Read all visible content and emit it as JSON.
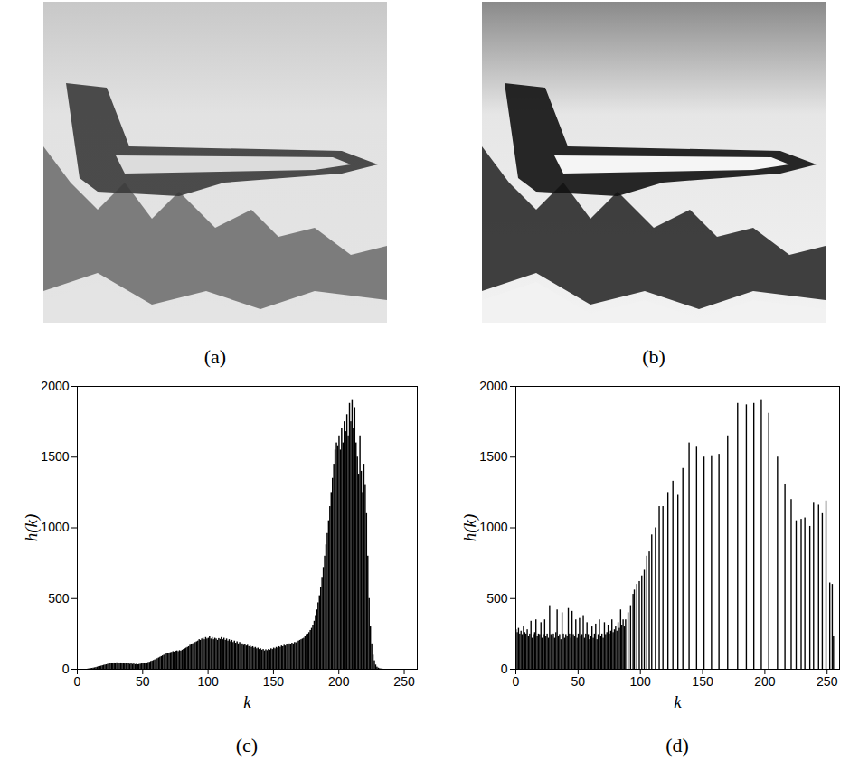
{
  "chart_data": [
    {
      "type": "image",
      "title": "(a)"
    },
    {
      "type": "image",
      "title": "(b)"
    },
    {
      "type": "histogram",
      "title": "(c)",
      "xlabel": "k",
      "ylabel": "h(k)",
      "color": "#000000",
      "xlim": [
        0,
        260
      ],
      "xticks": [
        0,
        50,
        100,
        150,
        200,
        250
      ],
      "ylim": [
        0,
        2000
      ],
      "yticks": [
        0,
        500,
        1000,
        1500,
        2000
      ],
      "bins": [
        0,
        1,
        2,
        3,
        4,
        5,
        6,
        7,
        8,
        9,
        10,
        11,
        12,
        13,
        14,
        15,
        16,
        17,
        18,
        19,
        20,
        21,
        22,
        23,
        24,
        25,
        26,
        27,
        28,
        29,
        30,
        31,
        32,
        33,
        34,
        35,
        36,
        37,
        38,
        39,
        40,
        41,
        42,
        43,
        44,
        45,
        46,
        47,
        48,
        49,
        50,
        51,
        52,
        53,
        54,
        55,
        56,
        57,
        58,
        59,
        60,
        61,
        62,
        63,
        64,
        65,
        66,
        67,
        68,
        69,
        70,
        71,
        72,
        73,
        74,
        75,
        76,
        77,
        78,
        79,
        80,
        81,
        82,
        83,
        84,
        85,
        86,
        87,
        88,
        89,
        90,
        91,
        92,
        93,
        94,
        95,
        96,
        97,
        98,
        99,
        100,
        101,
        102,
        103,
        104,
        105,
        106,
        107,
        108,
        109,
        110,
        111,
        112,
        113,
        114,
        115,
        116,
        117,
        118,
        119,
        120,
        121,
        122,
        123,
        124,
        125,
        126,
        127,
        128,
        129,
        130,
        131,
        132,
        133,
        134,
        135,
        136,
        137,
        138,
        139,
        140,
        141,
        142,
        143,
        144,
        145,
        146,
        147,
        148,
        149,
        150,
        151,
        152,
        153,
        154,
        155,
        156,
        157,
        158,
        159,
        160,
        161,
        162,
        163,
        164,
        165,
        166,
        167,
        168,
        169,
        170,
        171,
        172,
        173,
        174,
        175,
        176,
        177,
        178,
        179,
        180,
        181,
        182,
        183,
        184,
        185,
        186,
        187,
        188,
        189,
        190,
        191,
        192,
        193,
        194,
        195,
        196,
        197,
        198,
        199,
        200,
        201,
        202,
        203,
        204,
        205,
        206,
        207,
        208,
        209,
        210,
        211,
        212,
        213,
        214,
        215,
        216,
        217,
        218,
        219,
        220,
        221,
        222,
        223,
        224,
        225,
        226,
        227,
        228,
        229,
        230,
        231,
        232,
        233,
        234,
        235,
        236,
        237,
        238,
        239,
        240,
        241,
        242,
        243,
        244,
        245,
        246,
        247,
        248,
        249,
        250,
        251,
        252,
        253,
        254,
        255,
        256
      ],
      "values": [
        0,
        0,
        0,
        0,
        0,
        0,
        0,
        0,
        2,
        3,
        5,
        6,
        8,
        10,
        12,
        15,
        18,
        20,
        22,
        25,
        28,
        30,
        32,
        35,
        38,
        40,
        42,
        40,
        45,
        43,
        46,
        44,
        42,
        45,
        40,
        43,
        38,
        40,
        42,
        39,
        36,
        38,
        35,
        37,
        33,
        35,
        32,
        34,
        36,
        38,
        40,
        42,
        44,
        45,
        48,
        50,
        55,
        58,
        62,
        66,
        70,
        75,
        80,
        85,
        90,
        95,
        100,
        105,
        110,
        112,
        115,
        118,
        120,
        125,
        122,
        128,
        130,
        125,
        132,
        128,
        135,
        140,
        145,
        150,
        155,
        160,
        170,
        175,
        180,
        185,
        190,
        195,
        200,
        210,
        205,
        215,
        220,
        210,
        225,
        215,
        220,
        230,
        215,
        225,
        210,
        220,
        215,
        205,
        218,
        212,
        225,
        210,
        220,
        205,
        215,
        200,
        210,
        195,
        205,
        190,
        200,
        185,
        195,
        180,
        190,
        175,
        180,
        170,
        175,
        165,
        170,
        160,
        165,
        155,
        160,
        150,
        155,
        145,
        150,
        140,
        145,
        135,
        140,
        130,
        138,
        132,
        140,
        135,
        145,
        140,
        150,
        145,
        155,
        150,
        160,
        155,
        165,
        160,
        170,
        165,
        175,
        170,
        180,
        178,
        185,
        180,
        190,
        188,
        195,
        200,
        205,
        210,
        215,
        220,
        230,
        240,
        250,
        260,
        275,
        290,
        310,
        340,
        380,
        420,
        470,
        520,
        580,
        650,
        720,
        800,
        880,
        960,
        1050,
        1150,
        1250,
        1350,
        1450,
        1550,
        1600,
        1580,
        1650,
        1550,
        1700,
        1600,
        1750,
        1680,
        1800,
        1650,
        1880,
        1750,
        1900,
        1700,
        1850,
        1600,
        1500,
        1380,
        1650,
        1400,
        1250,
        1450,
        1300,
        1100,
        800,
        500,
        300,
        180,
        100,
        60,
        30,
        15,
        8,
        4,
        2,
        1,
        0,
        0,
        0,
        0,
        0,
        0,
        0,
        0,
        0,
        0,
        0,
        0,
        0,
        0,
        0,
        0,
        0,
        0,
        0,
        0,
        0,
        0
      ]
    },
    {
      "type": "histogram",
      "title": "(d)",
      "xlabel": "k",
      "ylabel": "h(k)",
      "color": "#000000",
      "xlim": [
        0,
        260
      ],
      "xticks": [
        0,
        50,
        100,
        150,
        200,
        250
      ],
      "ylim": [
        0,
        2000
      ],
      "yticks": [
        0,
        500,
        1000,
        1500,
        2000
      ],
      "bins": [
        0,
        1,
        2,
        3,
        4,
        5,
        6,
        7,
        8,
        9,
        10,
        11,
        12,
        13,
        14,
        15,
        16,
        17,
        18,
        19,
        20,
        21,
        22,
        23,
        24,
        25,
        26,
        27,
        28,
        29,
        30,
        31,
        32,
        33,
        34,
        35,
        36,
        37,
        38,
        39,
        40,
        41,
        42,
        43,
        44,
        45,
        46,
        47,
        48,
        49,
        50,
        51,
        52,
        53,
        54,
        55,
        56,
        57,
        58,
        59,
        60,
        61,
        62,
        63,
        64,
        65,
        66,
        67,
        68,
        69,
        70,
        71,
        72,
        73,
        74,
        75,
        76,
        77,
        78,
        79,
        80,
        81,
        82,
        83,
        84,
        85,
        86,
        87,
        88,
        89,
        90,
        91,
        92,
        93,
        94,
        95,
        96,
        97,
        98,
        99,
        100,
        101,
        102,
        103,
        104,
        105,
        106,
        107,
        108,
        109,
        110,
        111,
        112,
        113,
        114,
        115,
        116,
        117,
        118,
        119,
        120,
        121,
        122,
        123,
        124,
        125,
        126,
        127,
        128,
        129,
        130,
        131,
        132,
        133,
        134,
        135,
        136,
        137,
        138,
        139,
        140,
        141,
        142,
        143,
        144,
        145,
        146,
        147,
        148,
        149,
        150,
        151,
        152,
        153,
        154,
        155,
        156,
        157,
        158,
        159,
        160,
        161,
        162,
        163,
        164,
        165,
        166,
        167,
        168,
        169,
        170,
        171,
        172,
        173,
        174,
        175,
        176,
        177,
        178,
        179,
        180,
        181,
        182,
        183,
        184,
        185,
        186,
        187,
        188,
        189,
        190,
        191,
        192,
        193,
        194,
        195,
        196,
        197,
        198,
        199,
        200,
        201,
        202,
        203,
        204,
        205,
        206,
        207,
        208,
        209,
        210,
        211,
        212,
        213,
        214,
        215,
        216,
        217,
        218,
        219,
        220,
        221,
        222,
        223,
        224,
        225,
        226,
        227,
        228,
        229,
        230,
        231,
        232,
        233,
        234,
        235,
        236,
        237,
        238,
        239,
        240,
        241,
        242,
        243,
        244,
        245,
        246,
        247,
        248,
        249,
        250,
        251,
        252,
        253,
        254,
        255,
        256
      ],
      "values": [
        280,
        260,
        290,
        250,
        270,
        240,
        300,
        260,
        250,
        280,
        230,
        250,
        340,
        220,
        240,
        260,
        350,
        230,
        250,
        240,
        330,
        220,
        240,
        350,
        230,
        250,
        220,
        450,
        240,
        230,
        250,
        220,
        260,
        420,
        230,
        240,
        210,
        400,
        250,
        220,
        240,
        230,
        430,
        250,
        220,
        410,
        240,
        230,
        350,
        220,
        250,
        360,
        230,
        240,
        380,
        220,
        250,
        330,
        240,
        210,
        230,
        300,
        220,
        250,
        320,
        210,
        240,
        350,
        230,
        250,
        220,
        330,
        240,
        260,
        310,
        250,
        270,
        350,
        260,
        280,
        300,
        270,
        330,
        290,
        420,
        310,
        350,
        300,
        350,
        0,
        400,
        0,
        450,
        0,
        530,
        560,
        0,
        600,
        0,
        620,
        0,
        660,
        0,
        700,
        0,
        800,
        0,
        830,
        0,
        950,
        0,
        0,
        1000,
        0,
        0,
        1150,
        0,
        0,
        1150,
        0,
        0,
        0,
        1250,
        0,
        0,
        0,
        1330,
        0,
        0,
        0,
        1230,
        0,
        0,
        0,
        1420,
        0,
        0,
        0,
        0,
        1600,
        0,
        0,
        0,
        0,
        0,
        1570,
        0,
        0,
        0,
        0,
        0,
        1500,
        0,
        0,
        0,
        0,
        0,
        1510,
        0,
        0,
        0,
        0,
        0,
        1520,
        0,
        0,
        0,
        0,
        0,
        0,
        1650,
        0,
        0,
        0,
        0,
        0,
        0,
        0,
        1880,
        0,
        0,
        0,
        0,
        0,
        0,
        1870,
        0,
        0,
        0,
        0,
        0,
        1880,
        0,
        0,
        0,
        0,
        0,
        1900,
        0,
        0,
        0,
        0,
        0,
        1810,
        0,
        0,
        0,
        0,
        0,
        0,
        1500,
        0,
        0,
        0,
        0,
        0,
        1310,
        0,
        0,
        0,
        0,
        1200,
        0,
        0,
        0,
        1050,
        0,
        0,
        0,
        1060,
        0,
        0,
        1070,
        0,
        0,
        0,
        1010,
        0,
        0,
        1180,
        0,
        0,
        0,
        1160,
        0,
        0,
        1100,
        0,
        0,
        1190,
        0,
        0,
        610,
        0,
        600,
        230
      ]
    }
  ]
}
